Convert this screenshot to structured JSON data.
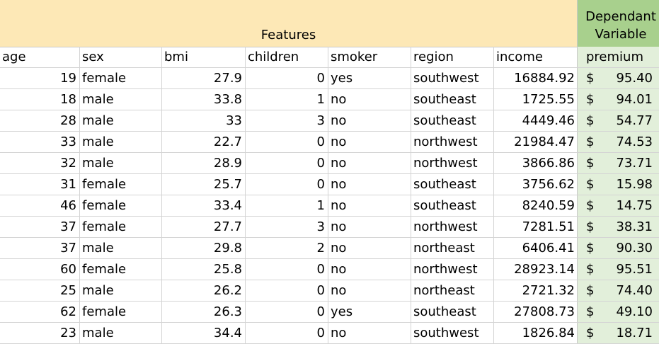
{
  "band": {
    "features_label": "Features",
    "dependent_label_line1": "Dependant",
    "dependent_label_line2": "Variable",
    "features_color": "#FDE8B6",
    "dependent_color": "#A8D08D",
    "premium_column_color": "#E2EFDA"
  },
  "columns": {
    "age": "age",
    "sex": "sex",
    "bmi": "bmi",
    "children": "children",
    "smoker": "smoker",
    "region": "region",
    "income": "income",
    "premium": "premium"
  },
  "currency_symbol": "$",
  "rows": [
    {
      "age": "19",
      "sex": "female",
      "bmi": "27.9",
      "children": "0",
      "smoker": "yes",
      "region": "southwest",
      "income": "16884.92",
      "premium": "95.40"
    },
    {
      "age": "18",
      "sex": "male",
      "bmi": "33.8",
      "children": "1",
      "smoker": "no",
      "region": "southeast",
      "income": "1725.55",
      "premium": "94.01"
    },
    {
      "age": "28",
      "sex": "male",
      "bmi": "33",
      "children": "3",
      "smoker": "no",
      "region": "southeast",
      "income": "4449.46",
      "premium": "54.77"
    },
    {
      "age": "33",
      "sex": "male",
      "bmi": "22.7",
      "children": "0",
      "smoker": "no",
      "region": "northwest",
      "income": "21984.47",
      "premium": "74.53"
    },
    {
      "age": "32",
      "sex": "male",
      "bmi": "28.9",
      "children": "0",
      "smoker": "no",
      "region": "northwest",
      "income": "3866.86",
      "premium": "73.71"
    },
    {
      "age": "31",
      "sex": "female",
      "bmi": "25.7",
      "children": "0",
      "smoker": "no",
      "region": "southeast",
      "income": "3756.62",
      "premium": "15.98"
    },
    {
      "age": "46",
      "sex": "female",
      "bmi": "33.4",
      "children": "1",
      "smoker": "no",
      "region": "southeast",
      "income": "8240.59",
      "premium": "14.75"
    },
    {
      "age": "37",
      "sex": "female",
      "bmi": "27.7",
      "children": "3",
      "smoker": "no",
      "region": "northwest",
      "income": "7281.51",
      "premium": "38.31"
    },
    {
      "age": "37",
      "sex": "male",
      "bmi": "29.8",
      "children": "2",
      "smoker": "no",
      "region": "northeast",
      "income": "6406.41",
      "premium": "90.30"
    },
    {
      "age": "60",
      "sex": "female",
      "bmi": "25.8",
      "children": "0",
      "smoker": "no",
      "region": "northwest",
      "income": "28923.14",
      "premium": "95.51"
    },
    {
      "age": "25",
      "sex": "male",
      "bmi": "26.2",
      "children": "0",
      "smoker": "no",
      "region": "northeast",
      "income": "2721.32",
      "premium": "74.40"
    },
    {
      "age": "62",
      "sex": "female",
      "bmi": "26.3",
      "children": "0",
      "smoker": "yes",
      "region": "southeast",
      "income": "27808.73",
      "premium": "49.10"
    },
    {
      "age": "23",
      "sex": "male",
      "bmi": "34.4",
      "children": "0",
      "smoker": "no",
      "region": "southwest",
      "income": "1826.84",
      "premium": "18.71"
    }
  ]
}
